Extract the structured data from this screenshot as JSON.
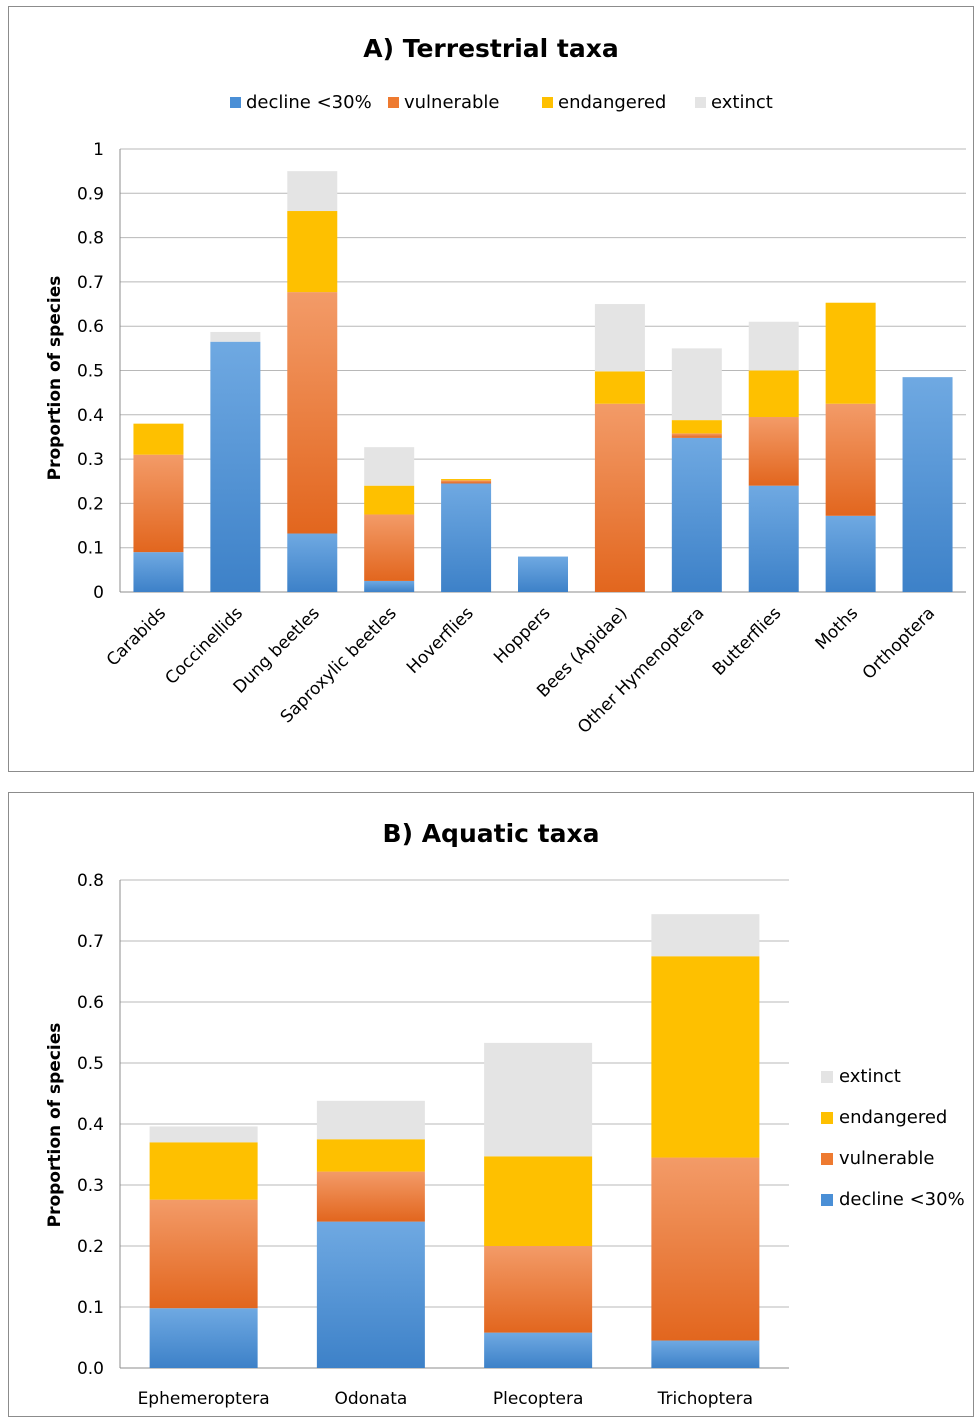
{
  "colors": {
    "decline": "#4a8fd6",
    "vulnerable": "#ee7a30",
    "endangered": "#fec000",
    "extinct": "#e4e4e4",
    "gridline": "#b8b8b8",
    "axis": "#8c8c8c"
  },
  "chart_data": [
    {
      "type": "bar",
      "stacked": true,
      "title": "A) Terrestrial taxa",
      "xlabel": "",
      "ylabel": "Proportion of species",
      "ylim": [
        0,
        1
      ],
      "yticks": [
        "0",
        "0.1",
        "0.2",
        "0.3",
        "0.4",
        "0.5",
        "0.6",
        "0.7",
        "0.8",
        "0.9",
        "1"
      ],
      "grid": true,
      "legend_position": "top",
      "categories": [
        "Carabids",
        "Coccinellids",
        "Dung beetles",
        "Saproxylic beetles",
        "Hoverflies",
        "Hoppers",
        "Bees (Apidae)",
        "Other Hymenoptera",
        "Butterflies",
        "Moths",
        "Orthoptera"
      ],
      "series": [
        {
          "name": "decline <30%",
          "key": "decline",
          "values": [
            0.09,
            0.565,
            0.132,
            0.025,
            0.245,
            0.08,
            0.0,
            0.348,
            0.24,
            0.172,
            0.485
          ]
        },
        {
          "name": "vulnerable",
          "key": "vulnerable",
          "values": [
            0.22,
            0.0,
            0.545,
            0.15,
            0.007,
            0.0,
            0.425,
            0.01,
            0.155,
            0.253,
            0.0
          ]
        },
        {
          "name": "endangered",
          "key": "endangered",
          "values": [
            0.07,
            0.0,
            0.183,
            0.065,
            0.003,
            0.0,
            0.073,
            0.03,
            0.105,
            0.228,
            0.0
          ]
        },
        {
          "name": "extinct",
          "key": "extinct",
          "values": [
            0.0,
            0.022,
            0.09,
            0.087,
            0.0,
            0.0,
            0.152,
            0.162,
            0.11,
            0.0,
            0.0
          ]
        }
      ]
    },
    {
      "type": "bar",
      "stacked": true,
      "title": "B) Aquatic taxa",
      "xlabel": "",
      "ylabel": "Proportion of species",
      "ylim": [
        0,
        0.8
      ],
      "yticks": [
        "0.0",
        "0.1",
        "0.2",
        "0.3",
        "0.4",
        "0.5",
        "0.6",
        "0.7",
        "0.8"
      ],
      "grid": true,
      "legend_position": "right",
      "categories": [
        "Ephemeroptera",
        "Odonata",
        "Plecoptera",
        "Trichoptera"
      ],
      "series": [
        {
          "name": "decline <30%",
          "key": "decline",
          "values": [
            0.098,
            0.24,
            0.058,
            0.045
          ]
        },
        {
          "name": "vulnerable",
          "key": "vulnerable",
          "values": [
            0.178,
            0.082,
            0.142,
            0.3
          ]
        },
        {
          "name": "endangered",
          "key": "endangered",
          "values": [
            0.094,
            0.053,
            0.147,
            0.33
          ]
        },
        {
          "name": "extinct",
          "key": "extinct",
          "values": [
            0.026,
            0.063,
            0.186,
            0.069
          ]
        }
      ]
    }
  ]
}
